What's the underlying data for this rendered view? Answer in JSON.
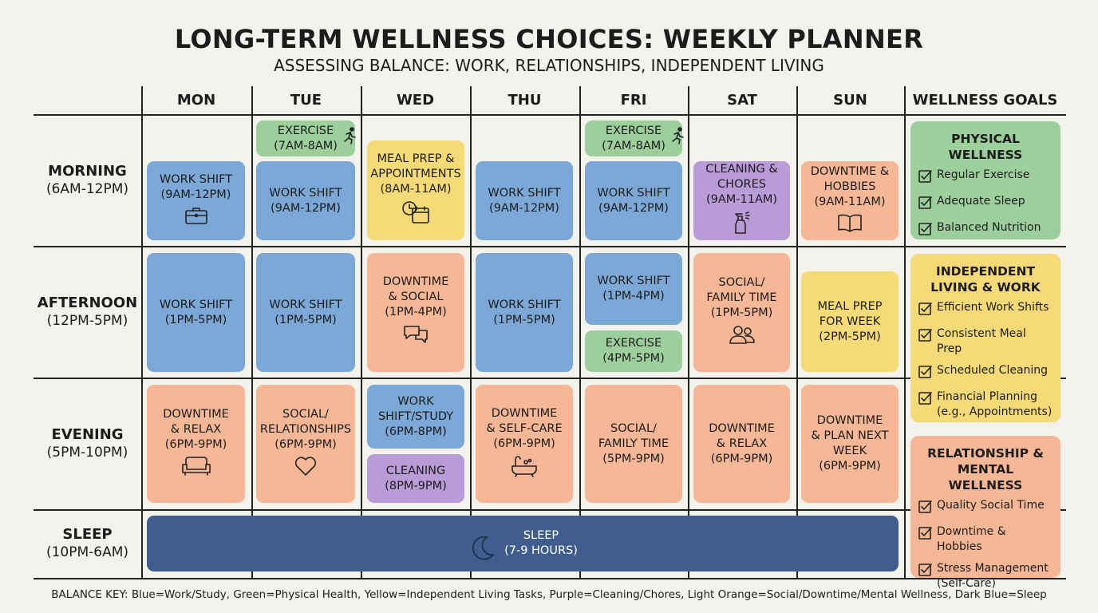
{
  "title": "LONG-TERM WELLNESS CHOICES: WEEKLY PLANNER",
  "subtitle": "ASSESSING BALANCE: WORK, RELATIONSHIPS, INDEPENDENT LIVING",
  "days": [
    "MON",
    "TUE",
    "WED",
    "THU",
    "FRI",
    "SAT",
    "SUN"
  ],
  "goals_header": "WELLNESS GOALS",
  "rows": [
    {
      "name": "MORNING",
      "time": "(6AM-12PM)"
    },
    {
      "name": "AFTERNOON",
      "time": "(12PM-5PM)"
    },
    {
      "name": "EVENING",
      "time": "(5PM-10PM)"
    },
    {
      "name": "SLEEP",
      "time": "(10PM-6AM)"
    }
  ],
  "colors": {
    "work": "#7ba8d6",
    "physical": "#9dcf9c",
    "independent": "#f6da78",
    "cleaning": "#b89bd7",
    "social": "#f6b796",
    "sleep": "#3f5e8d",
    "background": "#f4f2ec"
  },
  "blocks": [
    {
      "day": "MON",
      "row": "MORNING",
      "category": "work",
      "lines": [
        "WORK SHIFT",
        "(9AM-12PM)"
      ],
      "icon": "briefcase-icon"
    },
    {
      "day": "TUE",
      "row": "MORNING",
      "category": "physical",
      "lines": [
        "EXERCISE",
        "(7AM-8AM)"
      ],
      "icon": "runner-icon"
    },
    {
      "day": "TUE",
      "row": "MORNING",
      "category": "work",
      "lines": [
        "WORK SHIFT",
        "(9AM-12PM)"
      ],
      "icon": ""
    },
    {
      "day": "WED",
      "row": "MORNING",
      "category": "independent",
      "lines": [
        "MEAL PREP &",
        "APPOINTMENTS",
        "(8AM-11AM)"
      ],
      "icon": "calendar-clock-icon"
    },
    {
      "day": "THU",
      "row": "MORNING",
      "category": "work",
      "lines": [
        "WORK SHIFT",
        "(9AM-12PM)"
      ],
      "icon": ""
    },
    {
      "day": "FRI",
      "row": "MORNING",
      "category": "physical",
      "lines": [
        "EXERCISE",
        "(7AM-8AM)"
      ],
      "icon": "runner-icon"
    },
    {
      "day": "FRI",
      "row": "MORNING",
      "category": "work",
      "lines": [
        "WORK SHIFT",
        "(9AM-12PM)"
      ],
      "icon": ""
    },
    {
      "day": "SAT",
      "row": "MORNING",
      "category": "cleaning",
      "lines": [
        "CLEANING &",
        "CHORES",
        "(9AM-11AM)"
      ],
      "icon": "spray-bottle-icon"
    },
    {
      "day": "SUN",
      "row": "MORNING",
      "category": "social",
      "lines": [
        "DOWNTIME &",
        "HOBBIES",
        "(9AM-11AM)"
      ],
      "icon": "book-icon"
    },
    {
      "day": "MON",
      "row": "AFTERNOON",
      "category": "work",
      "lines": [
        "WORK SHIFT",
        "(1PM-5PM)"
      ],
      "icon": ""
    },
    {
      "day": "TUE",
      "row": "AFTERNOON",
      "category": "work",
      "lines": [
        "WORK SHIFT",
        "(1PM-5PM)"
      ],
      "icon": ""
    },
    {
      "day": "WED",
      "row": "AFTERNOON",
      "category": "social",
      "lines": [
        "DOWNTIME",
        "& SOCIAL",
        "(1PM-4PM)"
      ],
      "icon": "chat-icon"
    },
    {
      "day": "THU",
      "row": "AFTERNOON",
      "category": "work",
      "lines": [
        "WORK SHIFT",
        "(1PM-5PM)"
      ],
      "icon": ""
    },
    {
      "day": "FRI",
      "row": "AFTERNOON",
      "category": "work",
      "lines": [
        "WORK SHIFT",
        "(1PM-4PM)"
      ],
      "icon": ""
    },
    {
      "day": "FRI",
      "row": "AFTERNOON",
      "category": "physical",
      "lines": [
        "EXERCISE",
        "(4PM-5PM)"
      ],
      "icon": ""
    },
    {
      "day": "SAT",
      "row": "AFTERNOON",
      "category": "social",
      "lines": [
        "SOCIAL/",
        "FAMILY TIME",
        "(1PM-5PM)"
      ],
      "icon": "people-icon"
    },
    {
      "day": "SUN",
      "row": "AFTERNOON",
      "category": "independent",
      "lines": [
        "MEAL PREP",
        "FOR WEEK",
        "(2PM-5PM)"
      ],
      "icon": ""
    },
    {
      "day": "MON",
      "row": "EVENING",
      "category": "social",
      "lines": [
        "DOWNTIME",
        "& RELAX",
        "(6PM-9PM)"
      ],
      "icon": "sofa-icon"
    },
    {
      "day": "TUE",
      "row": "EVENING",
      "category": "social",
      "lines": [
        "SOCIAL/",
        "RELATIONSHIPS",
        "(6PM-9PM)"
      ],
      "icon": "heart-icon"
    },
    {
      "day": "WED",
      "row": "EVENING",
      "category": "work",
      "lines": [
        "WORK",
        "SHIFT/STUDY",
        "(6PM-8PM)"
      ],
      "icon": ""
    },
    {
      "day": "WED",
      "row": "EVENING",
      "category": "cleaning",
      "lines": [
        "CLEANING",
        "(8PM-9PM)"
      ],
      "icon": ""
    },
    {
      "day": "THU",
      "row": "EVENING",
      "category": "social",
      "lines": [
        "DOWNTIME",
        "& SELF-CARE",
        "(6PM-9PM)"
      ],
      "icon": "bathtub-icon"
    },
    {
      "day": "FRI",
      "row": "EVENING",
      "category": "social",
      "lines": [
        "SOCIAL/",
        "FAMILY TIME",
        "(5PM-9PM)"
      ],
      "icon": ""
    },
    {
      "day": "SAT",
      "row": "EVENING",
      "category": "social",
      "lines": [
        "DOWNTIME",
        "& RELAX",
        "(6PM-9PM)"
      ],
      "icon": ""
    },
    {
      "day": "SUN",
      "row": "EVENING",
      "category": "social",
      "lines": [
        "DOWNTIME",
        "& PLAN NEXT",
        "WEEK",
        "(6PM-9PM)"
      ],
      "icon": ""
    }
  ],
  "sleep_block": {
    "lines": [
      "SLEEP",
      "(7-9 HOURS)"
    ],
    "icon": "moon-icon"
  },
  "goals": [
    {
      "title": [
        "PHYSICAL WELLNESS"
      ],
      "category": "physical",
      "items": [
        [
          "Regular Exercise"
        ],
        [
          "Adequate Sleep"
        ],
        [
          "Balanced Nutrition"
        ]
      ]
    },
    {
      "title": [
        "INDEPENDENT",
        "LIVING & WORK"
      ],
      "category": "independent",
      "items": [
        [
          "Efficient Work Shifts"
        ],
        [
          "Consistent Meal Prep"
        ],
        [
          "Scheduled Cleaning"
        ],
        [
          "Financial Planning",
          "(e.g., Appointments)"
        ]
      ]
    },
    {
      "title": [
        "RELATIONSHIP &",
        "MENTAL WELLNESS"
      ],
      "category": "social",
      "items": [
        [
          "Quality Social Time"
        ],
        [
          "Downtime & Hobbies"
        ],
        [
          "Stress Management",
          "(Self-Care)"
        ]
      ]
    }
  ],
  "balance_key": "BALANCE KEY: Blue=Work/Study, Green=Physical Health, Yellow=Independent Living Tasks, Purple=Cleaning/Chores, Light Orange=Social/Downtime/Mental Wellness, Dark Blue=Sleep"
}
